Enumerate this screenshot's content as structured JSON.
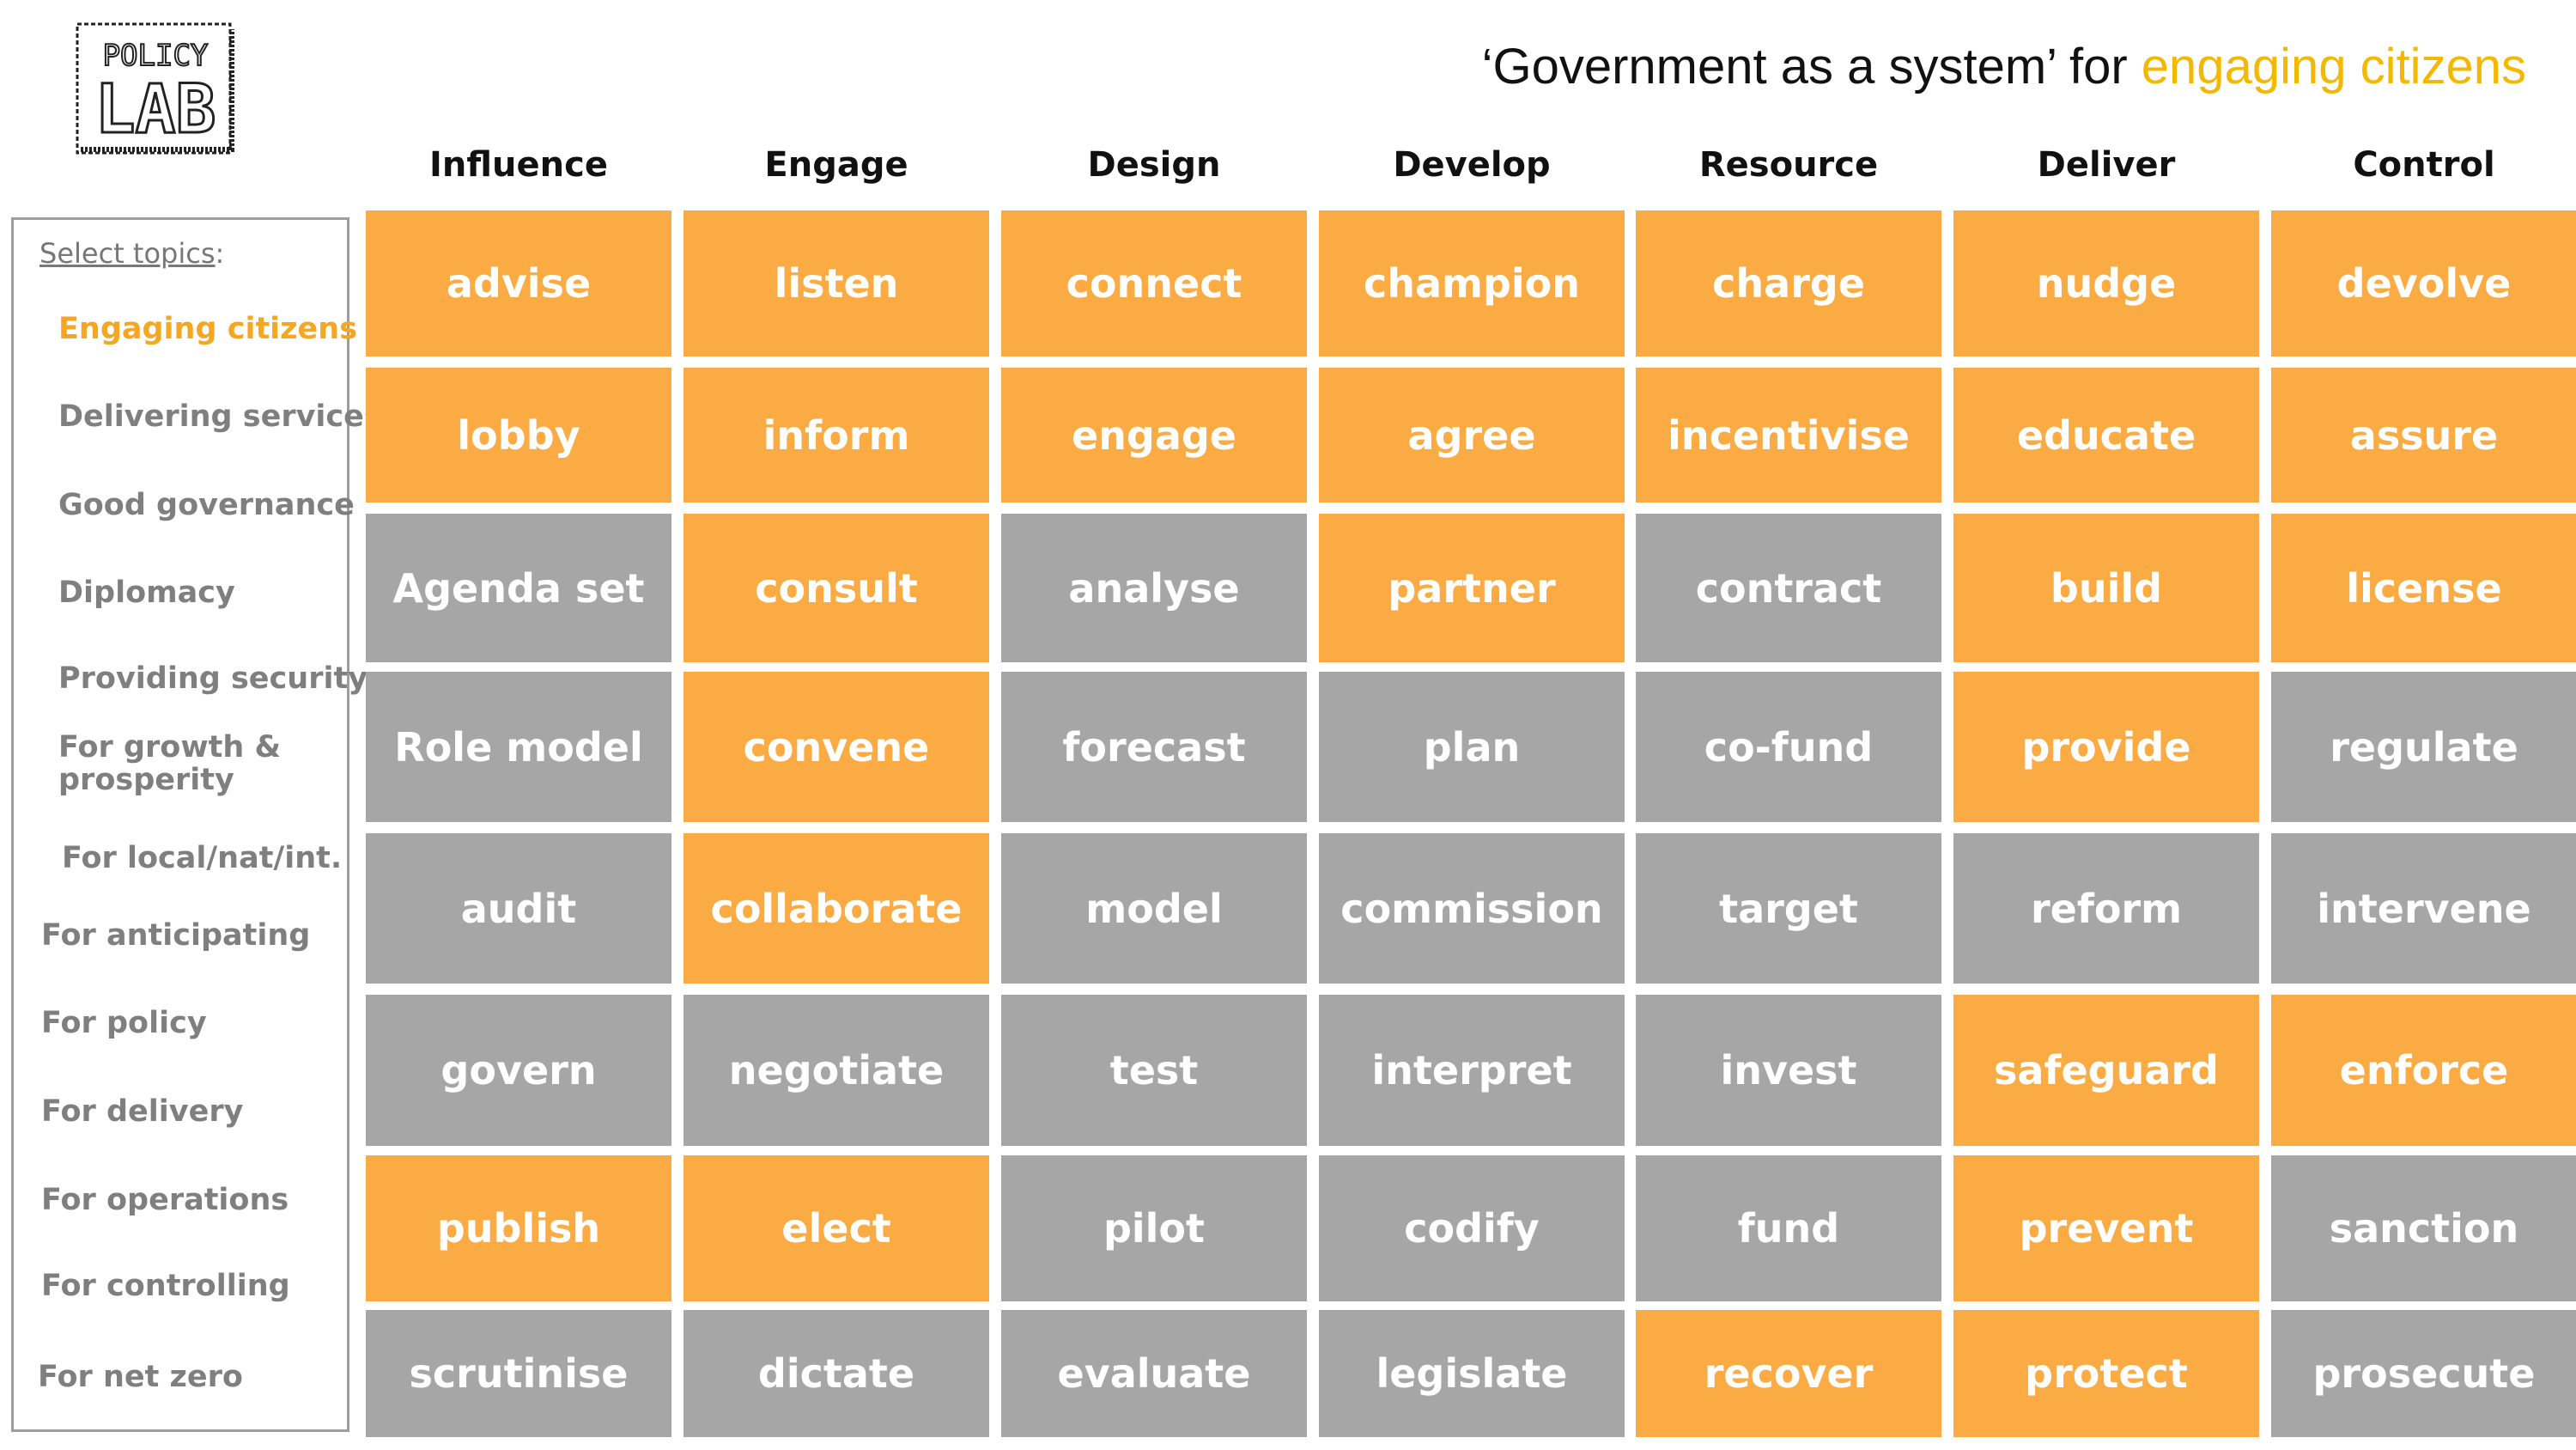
{
  "title": {
    "prefix": "‘Government as a system’ for ",
    "highlight": "engaging citizens"
  },
  "logo": {
    "text_top": "POLICY",
    "text_bottom": "LAB"
  },
  "sidebar": {
    "heading": "Select topics",
    "heading_suffix": ":",
    "topics": [
      {
        "label": "Engaging citizens",
        "active": true
      },
      {
        "label": "Delivering services",
        "active": false
      },
      {
        "label": "Good governance",
        "active": false
      },
      {
        "label": "Diplomacy",
        "active": false
      },
      {
        "label": "Providing security",
        "active": false
      },
      {
        "label": "For growth & prosperity",
        "active": false
      },
      {
        "label": "For local/nat/int.",
        "active": false
      },
      {
        "label": "For anticipating",
        "active": false
      },
      {
        "label": "For policy",
        "active": false
      },
      {
        "label": "For delivery",
        "active": false
      },
      {
        "label": "For operations",
        "active": false
      },
      {
        "label": "For controlling",
        "active": false
      },
      {
        "label": "For net zero",
        "active": false
      }
    ]
  },
  "columns": [
    "Influence",
    "Engage",
    "Design",
    "Develop",
    "Resource",
    "Deliver",
    "Control"
  ],
  "colors": {
    "highlight": "#fbab44",
    "neutral": "#a6a6a6",
    "title_accent": "#f5b800",
    "topic_active": "#f5a623"
  },
  "grid": [
    [
      {
        "label": "advise",
        "highlighted": true
      },
      {
        "label": "listen",
        "highlighted": true
      },
      {
        "label": "connect",
        "highlighted": true
      },
      {
        "label": "champion",
        "highlighted": true
      },
      {
        "label": "charge",
        "highlighted": true
      },
      {
        "label": "nudge",
        "highlighted": true
      },
      {
        "label": "devolve",
        "highlighted": true
      }
    ],
    [
      {
        "label": "lobby",
        "highlighted": true
      },
      {
        "label": "inform",
        "highlighted": true
      },
      {
        "label": "engage",
        "highlighted": true
      },
      {
        "label": "agree",
        "highlighted": true
      },
      {
        "label": "incentivise",
        "highlighted": true
      },
      {
        "label": "educate",
        "highlighted": true
      },
      {
        "label": "assure",
        "highlighted": true
      }
    ],
    [
      {
        "label": "Agenda set",
        "highlighted": false
      },
      {
        "label": "consult",
        "highlighted": true
      },
      {
        "label": "analyse",
        "highlighted": false
      },
      {
        "label": "partner",
        "highlighted": true
      },
      {
        "label": "contract",
        "highlighted": false
      },
      {
        "label": "build",
        "highlighted": true
      },
      {
        "label": "license",
        "highlighted": true
      }
    ],
    [
      {
        "label": "Role model",
        "highlighted": false
      },
      {
        "label": "convene",
        "highlighted": true
      },
      {
        "label": "forecast",
        "highlighted": false
      },
      {
        "label": "plan",
        "highlighted": false
      },
      {
        "label": "co-fund",
        "highlighted": false
      },
      {
        "label": "provide",
        "highlighted": true
      },
      {
        "label": "regulate",
        "highlighted": false
      }
    ],
    [
      {
        "label": "audit",
        "highlighted": false
      },
      {
        "label": "collaborate",
        "highlighted": true
      },
      {
        "label": "model",
        "highlighted": false
      },
      {
        "label": "commission",
        "highlighted": false
      },
      {
        "label": "target",
        "highlighted": false
      },
      {
        "label": "reform",
        "highlighted": false
      },
      {
        "label": "intervene",
        "highlighted": false
      }
    ],
    [
      {
        "label": "govern",
        "highlighted": false
      },
      {
        "label": "negotiate",
        "highlighted": false
      },
      {
        "label": "test",
        "highlighted": false
      },
      {
        "label": "interpret",
        "highlighted": false
      },
      {
        "label": "invest",
        "highlighted": false
      },
      {
        "label": "safeguard",
        "highlighted": true
      },
      {
        "label": "enforce",
        "highlighted": true
      }
    ],
    [
      {
        "label": "publish",
        "highlighted": true
      },
      {
        "label": "elect",
        "highlighted": true
      },
      {
        "label": "pilot",
        "highlighted": false
      },
      {
        "label": "codify",
        "highlighted": false
      },
      {
        "label": "fund",
        "highlighted": false
      },
      {
        "label": "prevent",
        "highlighted": true
      },
      {
        "label": "sanction",
        "highlighted": false
      }
    ],
    [
      {
        "label": "scrutinise",
        "highlighted": false
      },
      {
        "label": "dictate",
        "highlighted": false
      },
      {
        "label": "evaluate",
        "highlighted": false
      },
      {
        "label": "legislate",
        "highlighted": false
      },
      {
        "label": "recover",
        "highlighted": true
      },
      {
        "label": "protect",
        "highlighted": true
      },
      {
        "label": "prosecute",
        "highlighted": false
      }
    ]
  ]
}
